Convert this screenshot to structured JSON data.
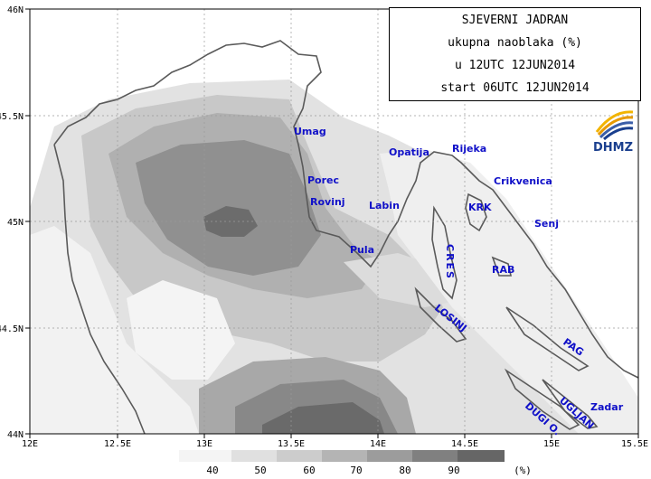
{
  "title": {
    "line1": "SJEVERNI JADRAN",
    "line2": "ukupna naoblaka (%)",
    "line3": "u 12UTC 12JUN2014",
    "line4": "start 06UTC 12JUN2014"
  },
  "logo": {
    "text": "DHMZ"
  },
  "axes": {
    "x_ticks": [
      "12E",
      "12.5E",
      "13E",
      "13.5E",
      "14E",
      "14.5E",
      "15E",
      "15.5E"
    ],
    "y_ticks": [
      "46N",
      "45.5N",
      "45N",
      "44.5N",
      "44N"
    ]
  },
  "places": [
    {
      "id": "umag",
      "label": "Umag"
    },
    {
      "id": "porec",
      "label": "Porec"
    },
    {
      "id": "rovinj",
      "label": "Rovinj"
    },
    {
      "id": "pula",
      "label": "Pula"
    },
    {
      "id": "labin",
      "label": "Labin"
    },
    {
      "id": "opatija",
      "label": "Opatija"
    },
    {
      "id": "rijeka",
      "label": "Rijeka"
    },
    {
      "id": "crikvenica",
      "label": "Crikvenica"
    },
    {
      "id": "krk",
      "label": "KRK"
    },
    {
      "id": "senj",
      "label": "Senj"
    },
    {
      "id": "cres",
      "label": "CRES"
    },
    {
      "id": "rab",
      "label": "RAB"
    },
    {
      "id": "losinj",
      "label": "LOSINJ"
    },
    {
      "id": "pag",
      "label": "PAG"
    },
    {
      "id": "zadar",
      "label": "Zadar"
    },
    {
      "id": "ugljan",
      "label": "UGLJAN"
    },
    {
      "id": "dugi",
      "label": "DUGI O."
    }
  ],
  "legend": {
    "labels": [
      "40",
      "50",
      "60",
      "70",
      "80",
      "90"
    ],
    "unit": "(%)",
    "colors": [
      "#f4f4f4",
      "#e0e0e0",
      "#cccccc",
      "#b4b4b4",
      "#9c9c9c",
      "#808080",
      "#666666"
    ]
  }
}
